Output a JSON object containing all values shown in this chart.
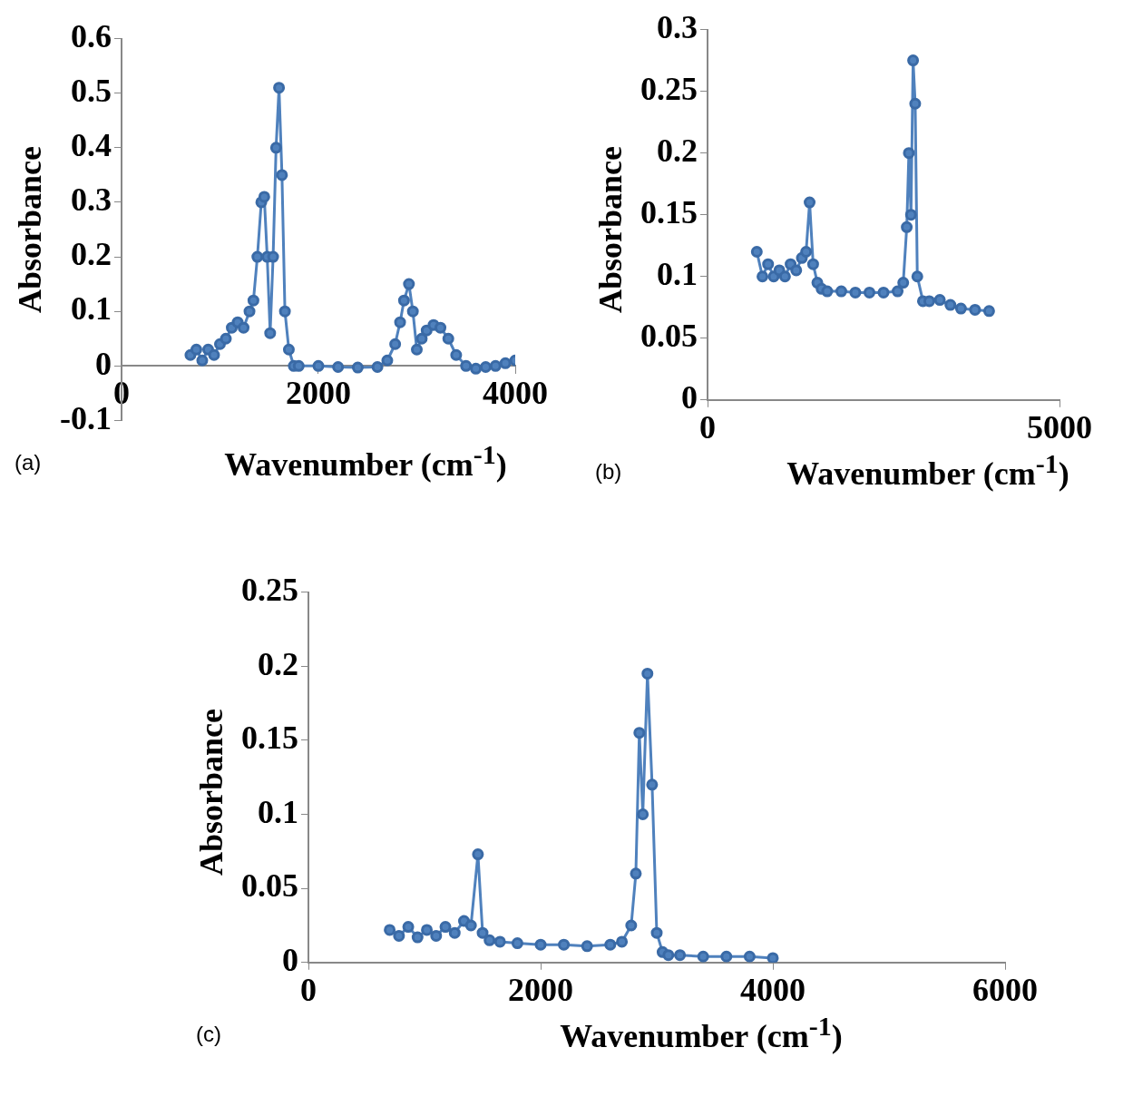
{
  "chart_data": [
    {
      "type": "line",
      "xlabel": "Wavenumber (cm$^{-1}$)",
      "ylabel": "Absorbance",
      "annotations": [
        "(a)"
      ],
      "marker": "circle",
      "grid": false,
      "xlim": [
        0,
        4000
      ],
      "xticks": [
        0,
        2000,
        4000
      ],
      "ylim": [
        -0.1,
        0.6
      ],
      "yticks": [
        -0.1,
        0,
        0.1,
        0.2,
        0.3,
        0.4,
        0.5,
        0.6
      ],
      "series": [
        {
          "color": "#4f81bd",
          "x": [
            700,
            760,
            820,
            880,
            940,
            1000,
            1060,
            1120,
            1180,
            1240,
            1300,
            1340,
            1380,
            1420,
            1450,
            1480,
            1510,
            1540,
            1570,
            1600,
            1630,
            1660,
            1700,
            1750,
            1800,
            2000,
            2200,
            2400,
            2600,
            2700,
            2780,
            2830,
            2870,
            2920,
            2960,
            3000,
            3050,
            3100,
            3170,
            3240,
            3320,
            3400,
            3500,
            3600,
            3700,
            3800,
            3900,
            4000
          ],
          "values": [
            0.02,
            0.03,
            0.01,
            0.03,
            0.02,
            0.04,
            0.05,
            0.07,
            0.08,
            0.07,
            0.1,
            0.12,
            0.2,
            0.3,
            0.31,
            0.2,
            0.06,
            0.2,
            0.4,
            0.51,
            0.35,
            0.1,
            0.03,
            0.0,
            0.0,
            0.0,
            -0.002,
            -0.003,
            -0.002,
            0.01,
            0.04,
            0.08,
            0.12,
            0.15,
            0.1,
            0.03,
            0.05,
            0.065,
            0.075,
            0.07,
            0.05,
            0.02,
            0.0,
            -0.005,
            -0.002,
            0.0,
            0.005,
            0.01
          ]
        }
      ]
    },
    {
      "type": "line",
      "xlabel": "Wavenumber (cm$^{-1}$)",
      "ylabel": "Absorbance",
      "annotations": [
        "(b)"
      ],
      "marker": "circle",
      "grid": false,
      "xlim": [
        0,
        5000
      ],
      "xticks": [
        0,
        5000
      ],
      "ylim": [
        0,
        0.3
      ],
      "yticks": [
        0,
        0.05,
        0.1,
        0.15,
        0.2,
        0.25,
        0.3
      ],
      "series": [
        {
          "color": "#4f81bd",
          "x": [
            700,
            780,
            860,
            940,
            1020,
            1100,
            1180,
            1260,
            1340,
            1400,
            1450,
            1500,
            1560,
            1620,
            1700,
            1900,
            2100,
            2300,
            2500,
            2700,
            2780,
            2830,
            2860,
            2890,
            2920,
            2950,
            2980,
            3060,
            3150,
            3300,
            3450,
            3600,
            3800,
            4000
          ],
          "values": [
            0.12,
            0.1,
            0.11,
            0.1,
            0.105,
            0.1,
            0.11,
            0.105,
            0.115,
            0.12,
            0.16,
            0.11,
            0.095,
            0.09,
            0.088,
            0.088,
            0.087,
            0.087,
            0.087,
            0.088,
            0.095,
            0.14,
            0.2,
            0.15,
            0.275,
            0.24,
            0.1,
            0.08,
            0.08,
            0.081,
            0.077,
            0.074,
            0.073,
            0.072
          ]
        }
      ]
    },
    {
      "type": "line",
      "xlabel": "Wavenumber (cm$^{-1}$)",
      "ylabel": "Absorbance",
      "annotations": [
        "(c)"
      ],
      "marker": "circle",
      "grid": false,
      "xlim": [
        0,
        6000
      ],
      "xticks": [
        0,
        2000,
        4000,
        6000
      ],
      "ylim": [
        0,
        0.25
      ],
      "yticks": [
        0,
        0.05,
        0.1,
        0.15,
        0.2,
        0.25
      ],
      "series": [
        {
          "color": "#4f81bd",
          "x": [
            700,
            780,
            860,
            940,
            1020,
            1100,
            1180,
            1260,
            1340,
            1400,
            1460,
            1500,
            1560,
            1650,
            1800,
            2000,
            2200,
            2400,
            2600,
            2700,
            2780,
            2820,
            2850,
            2880,
            2920,
            2960,
            3000,
            3050,
            3100,
            3200,
            3400,
            3600,
            3800,
            4000
          ],
          "values": [
            0.022,
            0.018,
            0.024,
            0.017,
            0.022,
            0.018,
            0.024,
            0.02,
            0.028,
            0.025,
            0.073,
            0.02,
            0.015,
            0.014,
            0.013,
            0.012,
            0.012,
            0.011,
            0.012,
            0.014,
            0.025,
            0.06,
            0.155,
            0.1,
            0.195,
            0.12,
            0.02,
            0.007,
            0.005,
            0.005,
            0.004,
            0.004,
            0.004,
            0.003
          ]
        }
      ]
    }
  ]
}
